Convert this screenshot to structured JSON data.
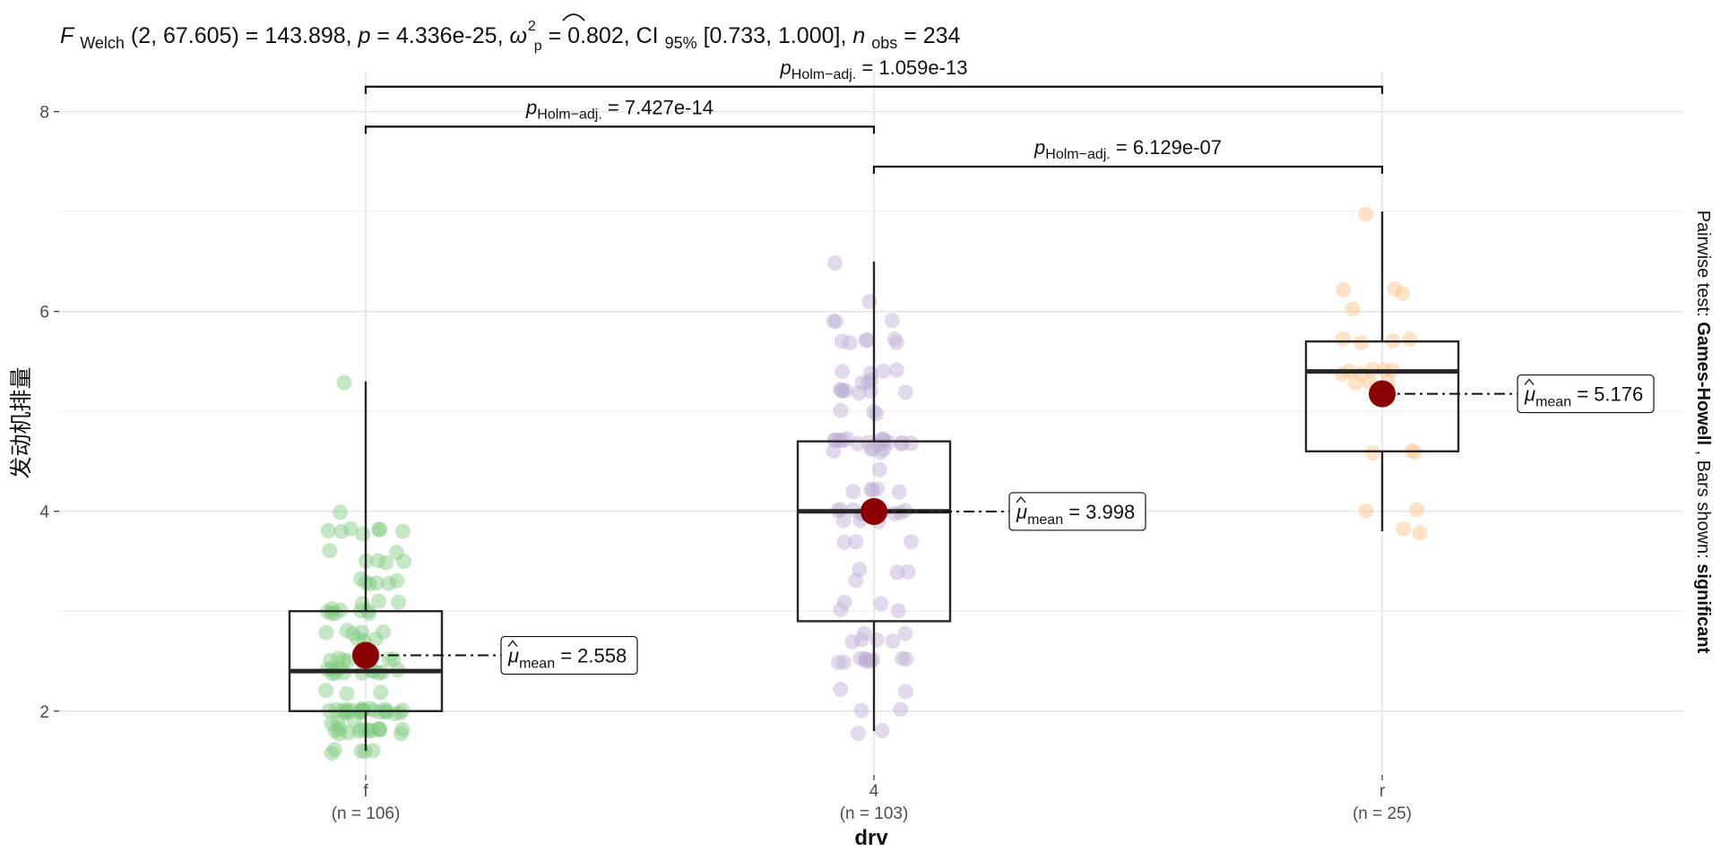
{
  "chart_data": {
    "type": "box+jitter",
    "title_parts": {
      "stat_symbol": "F",
      "stat_sub": "Welch",
      "args": "(2, 67.605)",
      "stat_value": " = 143.898, ",
      "p_symbol": "p",
      "p_value": " = 4.336e-25, ",
      "effect_symbol": "ω",
      "effect_hat": "^",
      "effect_sup": "2",
      "effect_sub": "p",
      "effect_value": " = 0.802, CI",
      "ci_sub": "95%",
      "ci_value": " [0.733, 1.000], ",
      "n_symbol": "n",
      "n_sub": "obs",
      "n_value": " = 234"
    },
    "xlabel": "drv",
    "ylabel": "发动机排量",
    "ylim": [
      1.2,
      8.75
    ],
    "yticks": [
      2,
      4,
      6,
      8
    ],
    "yticks_text": [
      "2",
      "4",
      "6",
      "8"
    ],
    "categories": [
      "f",
      "4",
      "r"
    ],
    "counts": [
      "(n = 106)",
      "(n = 103)",
      "(n = 25)"
    ],
    "colors": {
      "f": "#7fc97f",
      "4": "#beaed4",
      "r": "#fdc086",
      "mean": "#8b0000",
      "box": "#262626"
    },
    "boxes": [
      {
        "group": "f",
        "min": 1.6,
        "q1": 2.0,
        "median": 2.4,
        "q3": 3.0,
        "max": 5.3
      },
      {
        "group": "4",
        "min": 1.8,
        "q1": 2.9,
        "median": 4.0,
        "q3": 4.7,
        "max": 6.5
      },
      {
        "group": "r",
        "min": 3.8,
        "q1": 4.6,
        "median": 5.4,
        "q3": 5.7,
        "max": 7.0
      }
    ],
    "means": [
      {
        "group": "f",
        "value": 2.558,
        "symbol": "μ",
        "sub": "mean",
        "text": " = 2.558"
      },
      {
        "group": "4",
        "value": 3.998,
        "symbol": "μ",
        "sub": "mean",
        "text": " = 3.998"
      },
      {
        "group": "r",
        "value": 5.176,
        "symbol": "μ",
        "sub": "mean",
        "text": " = 5.176"
      }
    ],
    "points": {
      "f": [
        1.6,
        1.6,
        1.6,
        1.6,
        1.6,
        1.8,
        1.8,
        1.8,
        1.8,
        1.8,
        1.8,
        1.8,
        1.8,
        1.8,
        1.8,
        1.8,
        1.8,
        1.8,
        1.8,
        1.9,
        1.9,
        1.9,
        2.0,
        2.0,
        2.0,
        2.0,
        2.0,
        2.0,
        2.0,
        2.0,
        2.0,
        2.0,
        2.0,
        2.0,
        2.0,
        2.0,
        2.0,
        2.0,
        2.0,
        2.0,
        2.0,
        2.0,
        2.0,
        2.2,
        2.2,
        2.2,
        2.4,
        2.4,
        2.4,
        2.4,
        2.4,
        2.4,
        2.4,
        2.4,
        2.4,
        2.4,
        2.4,
        2.4,
        2.5,
        2.5,
        2.5,
        2.5,
        2.5,
        2.5,
        2.5,
        2.5,
        2.7,
        2.7,
        2.7,
        2.8,
        2.8,
        2.8,
        2.8,
        2.8,
        3.0,
        3.0,
        3.0,
        3.0,
        3.0,
        3.0,
        3.0,
        3.0,
        3.1,
        3.1,
        3.1,
        3.3,
        3.3,
        3.3,
        3.3,
        3.3,
        3.3,
        3.5,
        3.5,
        3.5,
        3.5,
        3.6,
        3.6,
        3.8,
        3.8,
        3.8,
        3.8,
        3.8,
        3.8,
        3.8,
        4.0,
        5.3
      ],
      "4": [
        1.8,
        1.8,
        2.0,
        2.0,
        2.2,
        2.2,
        2.5,
        2.5,
        2.5,
        2.5,
        2.5,
        2.5,
        2.5,
        2.5,
        2.5,
        2.5,
        2.7,
        2.7,
        2.7,
        2.7,
        2.8,
        2.8,
        3.0,
        3.0,
        3.1,
        3.1,
        3.3,
        3.4,
        3.4,
        3.4,
        3.7,
        3.7,
        3.7,
        3.9,
        3.9,
        3.9,
        4.0,
        4.0,
        4.0,
        4.0,
        4.0,
        4.0,
        4.0,
        4.0,
        4.0,
        4.0,
        4.0,
        4.0,
        4.2,
        4.2,
        4.2,
        4.2,
        4.2,
        4.4,
        4.6,
        4.6,
        4.6,
        4.6,
        4.6,
        4.7,
        4.7,
        4.7,
        4.7,
        4.7,
        4.7,
        4.7,
        4.7,
        4.7,
        4.7,
        4.7,
        4.7,
        4.7,
        4.7,
        4.7,
        4.7,
        5.0,
        5.0,
        5.0,
        5.2,
        5.2,
        5.2,
        5.2,
        5.2,
        5.2,
        5.2,
        5.3,
        5.3,
        5.4,
        5.4,
        5.4,
        5.4,
        5.7,
        5.7,
        5.7,
        5.7,
        5.7,
        5.7,
        5.9,
        5.9,
        5.9,
        6.1,
        6.5,
        5.3
      ],
      "r": [
        3.8,
        3.8,
        4.0,
        4.0,
        4.6,
        4.6,
        4.6,
        5.3,
        5.3,
        5.3,
        5.4,
        5.4,
        5.4,
        5.4,
        5.4,
        5.4,
        5.7,
        5.7,
        5.7,
        6.0,
        6.2,
        6.2,
        6.2,
        7.0,
        5.7
      ]
    },
    "pairwise": [
      {
        "from": "f",
        "to": "4",
        "y": 7.85,
        "symbol": "p",
        "sub": "Holm−adj.",
        "text": " = 7.427e-14"
      },
      {
        "from": "4",
        "to": "r",
        "y": 7.45,
        "symbol": "p",
        "sub": "Holm−adj.",
        "text": " = 6.129e-07"
      },
      {
        "from": "f",
        "to": "r",
        "y": 8.25,
        "symbol": "p",
        "sub": "Holm−adj.",
        "text": " = 1.059e-13"
      }
    ],
    "caption_parts": {
      "prefix": "Pairwise test: ",
      "test": "Games-Howell",
      "middle": ", Bars shown: ",
      "shown": "significant"
    }
  }
}
